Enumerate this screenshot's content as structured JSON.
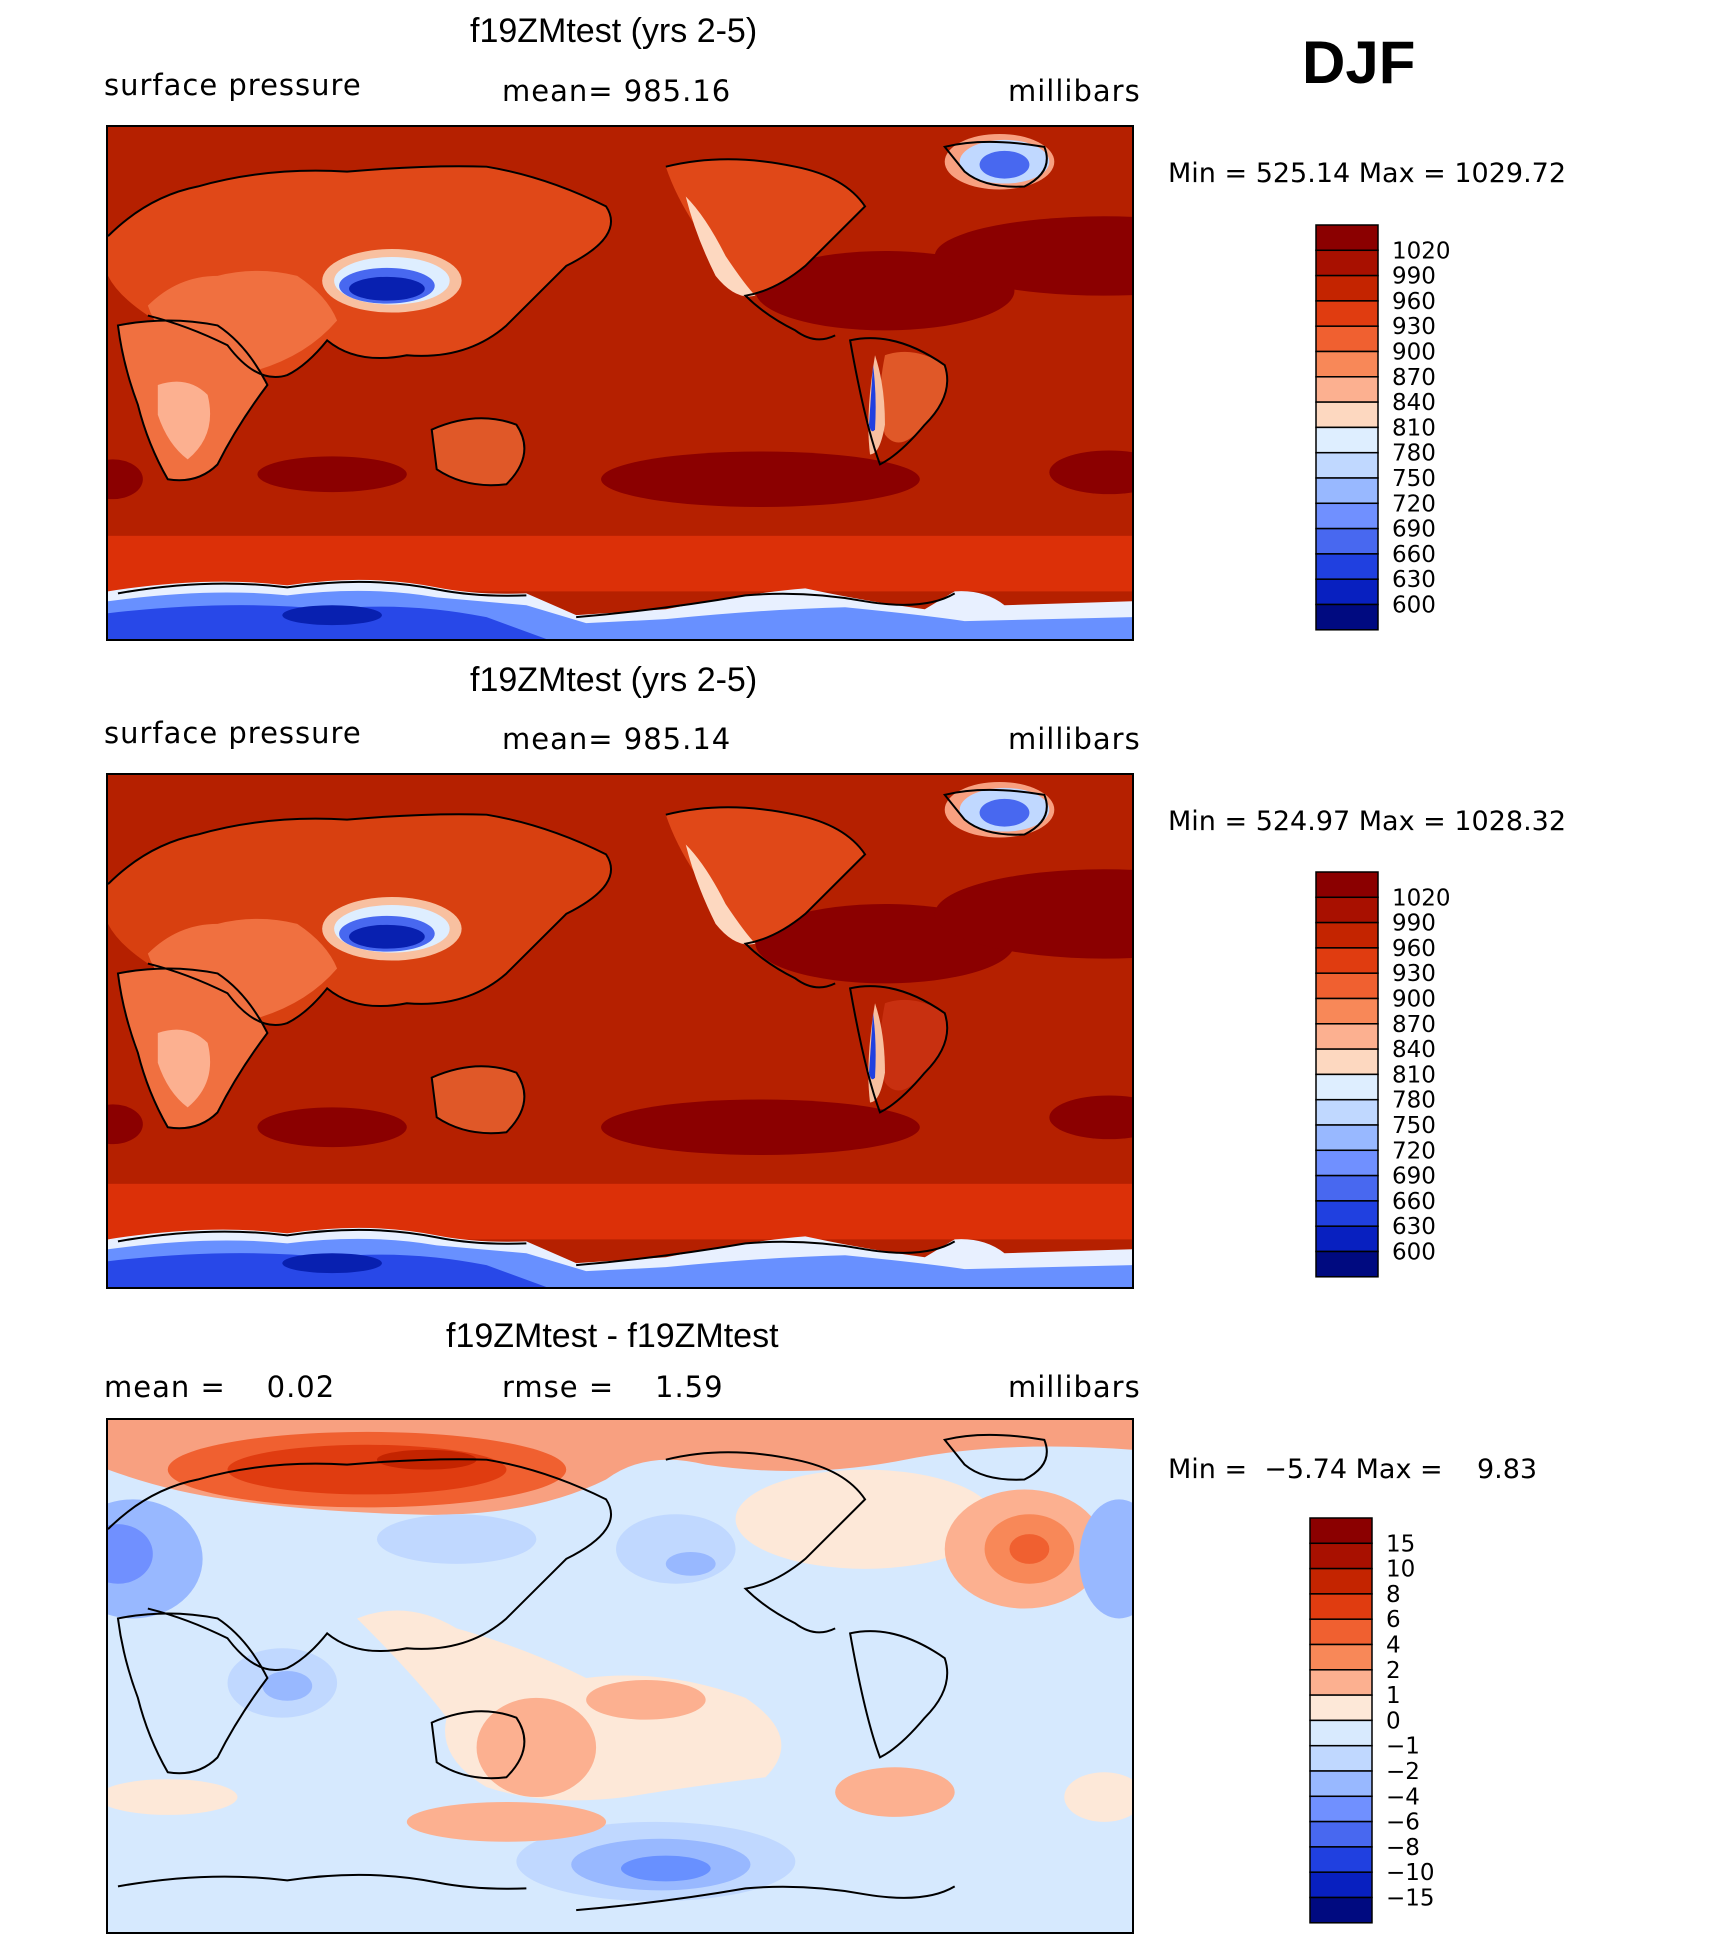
{
  "season": "DJF",
  "panels": [
    {
      "title": "f19ZMtest (yrs 2-5)",
      "left": "surface pressure",
      "center": "mean= 985.16",
      "right": "millibars",
      "minmax": "Min = 525.14 Max = 1029.72",
      "colorbar": {
        "labels": [
          "1020",
          "990",
          "960",
          "930",
          "900",
          "870",
          "840",
          "810",
          "780",
          "750",
          "720",
          "690",
          "660",
          "630",
          "600"
        ],
        "colors": [
          "#8b0000",
          "#a81000",
          "#c42400",
          "#e03c10",
          "#f06030",
          "#f88858",
          "#fcb090",
          "#fdd8c0",
          "#deeeff",
          "#c0d8ff",
          "#98b8ff",
          "#7090ff",
          "#4868f0",
          "#2040e0",
          "#0820c0",
          "#000a80"
        ]
      }
    },
    {
      "title": "f19ZMtest (yrs 2-5)",
      "left": "surface pressure",
      "center": "mean= 985.14",
      "right": "millibars",
      "minmax": "Min = 524.97 Max = 1028.32",
      "colorbar": {
        "labels": [
          "1020",
          "990",
          "960",
          "930",
          "900",
          "870",
          "840",
          "810",
          "780",
          "750",
          "720",
          "690",
          "660",
          "630",
          "600"
        ],
        "colors": [
          "#8b0000",
          "#a81000",
          "#c42400",
          "#e03c10",
          "#f06030",
          "#f88858",
          "#fcb090",
          "#fdd8c0",
          "#deeeff",
          "#c0d8ff",
          "#98b8ff",
          "#7090ff",
          "#4868f0",
          "#2040e0",
          "#0820c0",
          "#000a80"
        ]
      }
    },
    {
      "title": "f19ZMtest - f19ZMtest",
      "left": "mean =    0.02",
      "center": "rmse =    1.59",
      "right": "millibars",
      "minmax": "Min =  −5.74 Max =    9.83",
      "colorbar": {
        "labels": [
          "15",
          "10",
          "8",
          "6",
          "4",
          "2",
          "1",
          "0",
          "−1",
          "−2",
          "−4",
          "−6",
          "−8",
          "−10",
          "−15"
        ],
        "colors": [
          "#8b0000",
          "#a81000",
          "#c42400",
          "#e03c10",
          "#f06030",
          "#f88858",
          "#fcb090",
          "#fde8d8",
          "#d8eafe",
          "#c0d8ff",
          "#98b8ff",
          "#7090ff",
          "#4868f0",
          "#2040e0",
          "#0820c0",
          "#000a80"
        ]
      }
    }
  ]
}
